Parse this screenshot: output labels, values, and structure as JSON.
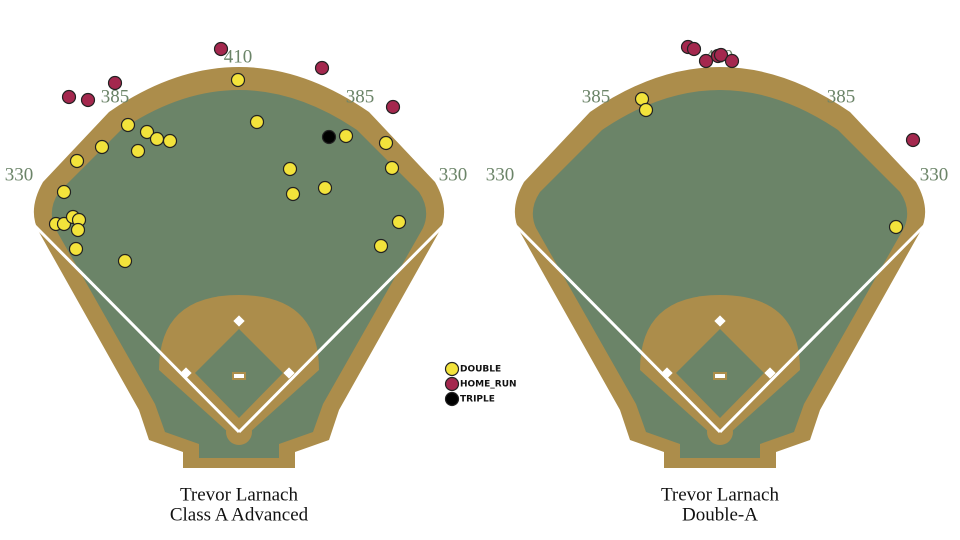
{
  "chart_data": [
    {
      "type": "scatter",
      "title": "Trevor Larnach",
      "subtitle": "Class A Advanced",
      "annotations": [
        "330",
        "385",
        "410",
        "385",
        "330"
      ],
      "xlim": [
        -240,
        240
      ],
      "ylim": [
        -40,
        400
      ],
      "series": [
        {
          "name": "DOUBLE",
          "color": "#f3e33b",
          "x": [
            -1,
            18,
            -111,
            -92,
            -82,
            -69,
            -137,
            -101,
            -162,
            -175,
            51,
            54,
            86,
            107,
            147,
            153,
            160,
            142,
            -183,
            -175,
            -166,
            -160,
            -161,
            -163,
            -114
          ],
          "y": [
            352,
            310,
            307,
            300,
            293,
            291,
            285,
            281,
            271,
            240,
            263,
            238,
            244,
            296,
            289,
            264,
            210,
            186,
            208,
            208,
            215,
            212,
            202,
            183,
            171
          ]
        },
        {
          "name": "HOME_RUN",
          "color": "#a4284e",
          "x": [
            -18,
            83,
            -124,
            -170,
            -151,
            154
          ],
          "y": [
            383,
            364,
            349,
            335,
            332,
            325
          ]
        },
        {
          "name": "TRIPLE",
          "color": "#000000",
          "x": [
            90
          ],
          "y": [
            295
          ]
        }
      ]
    },
    {
      "type": "scatter",
      "title": "Trevor Larnach",
      "subtitle": "Double-A",
      "annotations": [
        "330",
        "385",
        "410",
        "385",
        "330"
      ],
      "xlim": [
        -240,
        240
      ],
      "ylim": [
        -40,
        400
      ],
      "series": [
        {
          "color": "#f3e33b",
          "x": [
            -78,
            -74,
            176
          ],
          "y": [
            333,
            322,
            205
          ]
        },
        {
          "color": "#a4284e",
          "x": [
            -32,
            -26,
            -14,
            -2,
            1,
            12,
            193
          ],
          "y": [
            385,
            383,
            371,
            376,
            377,
            371,
            292
          ]
        }
      ]
    }
  ]
}
